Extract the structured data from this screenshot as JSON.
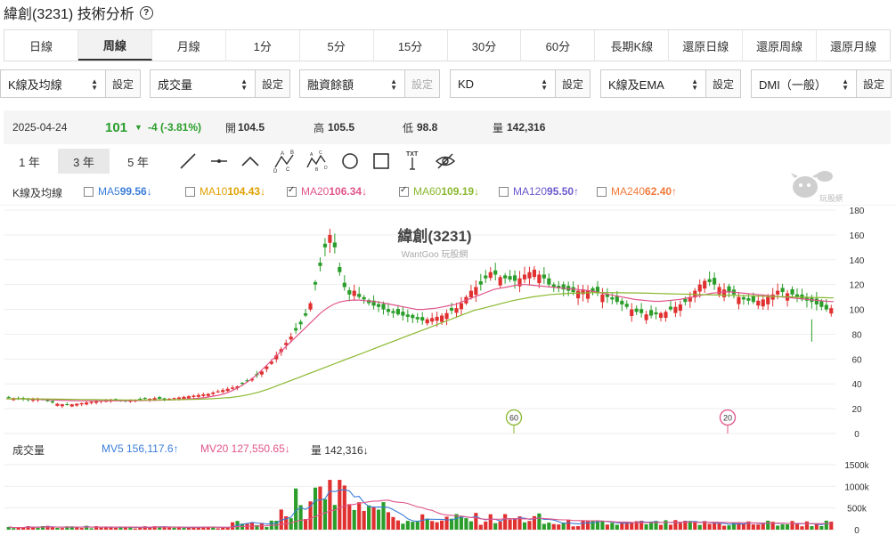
{
  "page": {
    "title": "緯創(3231) 技術分析"
  },
  "tabs": [
    {
      "label": "日線",
      "active": false
    },
    {
      "label": "周線",
      "active": true
    },
    {
      "label": "月線",
      "active": false
    },
    {
      "label": "1分",
      "active": false
    },
    {
      "label": "5分",
      "active": false
    },
    {
      "label": "15分",
      "active": false
    },
    {
      "label": "30分",
      "active": false
    },
    {
      "label": "60分",
      "active": false
    },
    {
      "label": "長期K線",
      "active": false
    },
    {
      "label": "還原日線",
      "active": false
    },
    {
      "label": "還原周線",
      "active": false
    },
    {
      "label": "還原月線",
      "active": false
    }
  ],
  "selectors": [
    {
      "value": "K線及均線",
      "button": "設定",
      "disabled": false
    },
    {
      "value": "成交量",
      "button": "設定",
      "disabled": false
    },
    {
      "value": "融資餘額",
      "button": "設定",
      "disabled": true
    },
    {
      "value": "KD",
      "button": "設定",
      "disabled": false
    },
    {
      "value": "K線及EMA",
      "button": "設定",
      "disabled": false
    },
    {
      "value": "DMI（一般）",
      "button": "設定",
      "disabled": false
    }
  ],
  "quote": {
    "date": "2025-04-24",
    "price": "101",
    "change": "-4 (-3.81%)",
    "open_label": "開",
    "open": "104.5",
    "high_label": "高",
    "high": "105.5",
    "low_label": "低",
    "low": "98.8",
    "volume_label": "量",
    "volume": "142,316"
  },
  "ranges": [
    {
      "label": "1 年",
      "active": false
    },
    {
      "label": "3 年",
      "active": true
    },
    {
      "label": "5 年",
      "active": false
    }
  ],
  "tools": [
    "line-tool-icon",
    "horizontal-line-icon",
    "peak-line-icon",
    "abcd-pattern-icon",
    "abcd-wave-icon",
    "circle-tool-icon",
    "rectangle-tool-icon",
    "text-tool-icon",
    "hide-drawings-icon"
  ],
  "ma_legend": {
    "label": "K線及均線",
    "items": [
      {
        "name": "MA5",
        "value": "99.56↓",
        "checked": false,
        "color": "#3b7dd8"
      },
      {
        "name": "MA10",
        "value": "104.43↓",
        "checked": false,
        "color": "#e0a000"
      },
      {
        "name": "MA20",
        "value": "106.34↓",
        "checked": true,
        "color": "#e0558a"
      },
      {
        "name": "MA60",
        "value": "109.19↓",
        "checked": true,
        "color": "#8ab82e"
      },
      {
        "name": "MA120",
        "value": "95.50↑",
        "checked": false,
        "color": "#6a5acd"
      },
      {
        "name": "MA240",
        "value": "62.40↑",
        "checked": false,
        "color": "#f07a3a"
      }
    ]
  },
  "watermark": {
    "title": "緯創(3231)",
    "subtitle": "WantGoo 玩股網",
    "logo_text": "玩股網"
  },
  "markers": [
    {
      "label": "60",
      "color": "#8ab82e"
    },
    {
      "label": "20",
      "color": "#e0558a"
    }
  ],
  "vol_legend": {
    "label": "成交量",
    "mv5": "MV5 156,117.6↑",
    "mv20": "MV20 127,550.65↓",
    "vol": "量 142,316↓"
  },
  "colors": {
    "up": "#e03030",
    "down": "#2a9d2a",
    "ma20": "#e0558a",
    "ma60": "#8ab82e",
    "mv5": "#3b7dd8",
    "mv20": "#e0558a"
  },
  "chart_data": {
    "type": "candlestick",
    "price_axis": {
      "ticks": [
        0,
        20,
        40,
        60,
        80,
        100,
        120,
        140,
        160,
        180
      ],
      "range": [
        0,
        180
      ]
    },
    "volume_axis": {
      "ticks": [
        "0",
        "500k",
        "1000k",
        "1500k"
      ],
      "range": [
        0,
        1500000
      ]
    },
    "price_path": [
      29,
      28.5,
      28,
      27.5,
      27,
      27.5,
      28,
      27,
      26,
      25,
      24,
      23.5,
      23,
      23.5,
      24,
      24.5,
      25,
      25.5,
      26,
      26.5,
      27,
      27,
      26.5,
      26,
      26,
      26.5,
      27,
      27.5,
      28,
      28,
      28.5,
      28,
      27.5,
      28,
      28.5,
      29,
      29.5,
      30,
      30.5,
      31,
      31.5,
      32,
      33,
      34,
      35,
      36,
      37,
      38,
      40,
      42,
      44,
      47,
      50,
      54,
      58,
      63,
      68,
      73,
      78,
      83,
      88,
      95,
      105,
      120,
      135,
      150,
      160,
      150,
      130,
      118,
      112,
      115,
      110,
      108,
      105,
      103,
      102,
      100,
      98,
      97,
      96,
      95,
      94,
      93,
      92,
      91,
      92,
      93,
      94,
      95,
      97,
      99,
      101,
      105,
      110,
      115,
      118,
      120,
      125,
      130,
      128,
      126,
      125,
      124,
      123,
      125,
      128,
      130,
      132,
      128,
      125,
      120,
      118,
      117,
      116,
      115,
      114,
      115,
      116,
      115,
      114,
      113,
      112,
      110,
      108,
      106,
      104,
      102,
      100,
      98,
      97,
      96,
      95,
      96,
      97,
      98,
      100,
      102,
      104,
      106,
      110,
      115,
      120,
      123,
      122,
      120,
      118,
      116,
      114,
      112,
      110,
      108,
      107,
      106,
      107,
      108,
      110,
      112,
      115,
      114,
      113,
      112,
      110,
      108,
      107,
      106,
      104,
      102,
      100,
      101
    ],
    "ma20_path": [
      28,
      28,
      28,
      27.8,
      27.6,
      27.5,
      27.3,
      27.1,
      26.9,
      26.7,
      26.5,
      26.4,
      26.3,
      26.3,
      26.3,
      26.3,
      26.3,
      26.3,
      26.4,
      26.5,
      26.6,
      26.6,
      26.7,
      26.8,
      26.9,
      27,
      27.2,
      27.4,
      27.7,
      28,
      28.5,
      29,
      29.8,
      30.8,
      32,
      34,
      36.5,
      39.5,
      43,
      47,
      52,
      57,
      62,
      67,
      72,
      77,
      82,
      87,
      92,
      97,
      101,
      104,
      106,
      107,
      107.5,
      107.5,
      107,
      106.5,
      106,
      105,
      104,
      103,
      102,
      101,
      100,
      100,
      100.5,
      101,
      102,
      103,
      104,
      106,
      108,
      110,
      112,
      114,
      116,
      117,
      118,
      119,
      120,
      120,
      119.5,
      119,
      118.5,
      118,
      117.5,
      117,
      116.5,
      116,
      115.5,
      115,
      114,
      113,
      112,
      111,
      110,
      109,
      108,
      107.5,
      107,
      106.5,
      106.5,
      107,
      107.5,
      108,
      109,
      110,
      111,
      112,
      113,
      113.5,
      114,
      114,
      113.5,
      113,
      112.5,
      112,
      111.5,
      111,
      110.5,
      110,
      109.5,
      109,
      108.5,
      108,
      107.5,
      107,
      106.5,
      106.3
    ],
    "ma60_path": [
      28,
      28,
      28,
      27.9,
      27.8,
      27.7,
      27.6,
      27.5,
      27.4,
      27.3,
      27.2,
      27.1,
      27,
      27,
      27,
      27,
      27.1,
      27.2,
      27.3,
      27.5,
      27.7,
      28,
      28.5,
      29,
      30,
      31.5,
      33.5,
      36,
      39,
      42,
      45,
      48,
      51,
      54,
      57,
      60,
      63,
      66,
      69,
      72,
      75,
      78,
      81,
      84,
      87,
      90,
      93,
      96,
      99,
      101,
      103,
      105,
      107,
      108.5,
      110,
      111,
      112,
      112.5,
      113,
      113.2,
      113.4,
      113.5,
      113.5,
      113.4,
      113.3,
      113.2,
      113,
      112.8,
      112.6,
      112.4,
      112.2,
      112,
      111.8,
      111.6,
      111.4,
      111.2,
      111,
      110.8,
      110.6,
      110.4,
      110.2,
      110,
      109.8,
      109.6,
      109.4,
      109.2
    ],
    "volume_bars": 170
  }
}
